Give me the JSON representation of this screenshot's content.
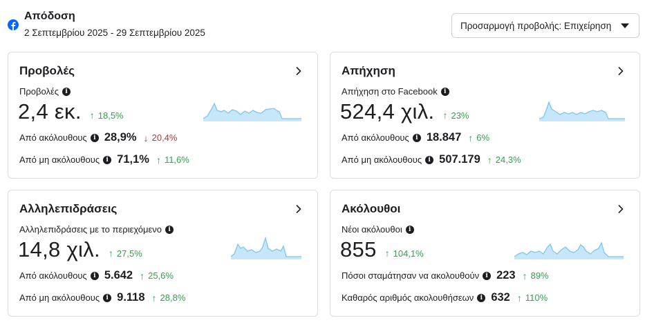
{
  "header": {
    "title": "Απόδοση",
    "daterange": "2 Σεπτεμβρίου 2025 - 29 Σεπτεμβρίου 2025",
    "view_select": "Προσαρμογή προβολής: Επιχείρηση"
  },
  "colors": {
    "facebook_blue": "#0866ff",
    "positive": "#31a24c",
    "negative": "#b33a3a",
    "spark_fill": "#c6e6fa",
    "spark_line": "#7cc6f0"
  },
  "cards": [
    {
      "title": "Προβολές",
      "metric_label": "Προβολές",
      "value": "2,4 εκ.",
      "delta": {
        "dir": "up",
        "text": "18,5%"
      },
      "rows": [
        {
          "label": "Από ακόλουθους",
          "value": "28,9%",
          "delta": {
            "dir": "down",
            "text": "20,4%"
          }
        },
        {
          "label": "Από μη ακόλουθους",
          "value": "71,1%",
          "delta": {
            "dir": "up",
            "text": "11,6%"
          }
        }
      ]
    },
    {
      "title": "Απήχηση",
      "metric_label": "Απήχηση στο Facebook",
      "value": "524,4 χιλ.",
      "delta": {
        "dir": "up",
        "text": "23%"
      },
      "rows": [
        {
          "label": "Από ακόλουθους",
          "value": "18.847",
          "delta": {
            "dir": "up",
            "text": "6%"
          }
        },
        {
          "label": "Από μη ακόλουθους",
          "value": "507.179",
          "delta": {
            "dir": "up",
            "text": "24,3%"
          }
        }
      ]
    },
    {
      "title": "Αλληλεπιδράσεις",
      "metric_label": "Αλληλεπιδράσεις με το περιεχόμενο",
      "value": "14,8 χιλ.",
      "delta": {
        "dir": "up",
        "text": "27,5%"
      },
      "rows": [
        {
          "label": "Από ακόλουθους",
          "value": "5.642",
          "delta": {
            "dir": "up",
            "text": "25,6%"
          }
        },
        {
          "label": "Από μη ακόλουθους",
          "value": "9.118",
          "delta": {
            "dir": "up",
            "text": "28,8%"
          }
        }
      ]
    },
    {
      "title": "Ακόλουθοι",
      "metric_label": "Νέοι ακόλουθοι",
      "value": "855",
      "delta": {
        "dir": "up",
        "text": "104,1%"
      },
      "rows": [
        {
          "label": "Πόσοι σταμάτησαν να ακολουθούν",
          "value": "223",
          "delta": {
            "dir": "up",
            "text": "89%"
          }
        },
        {
          "label": "Καθαρός αριθμός ακολουθήσεων",
          "value": "632",
          "delta": {
            "dir": "up",
            "text": "110%"
          }
        }
      ]
    }
  ]
}
